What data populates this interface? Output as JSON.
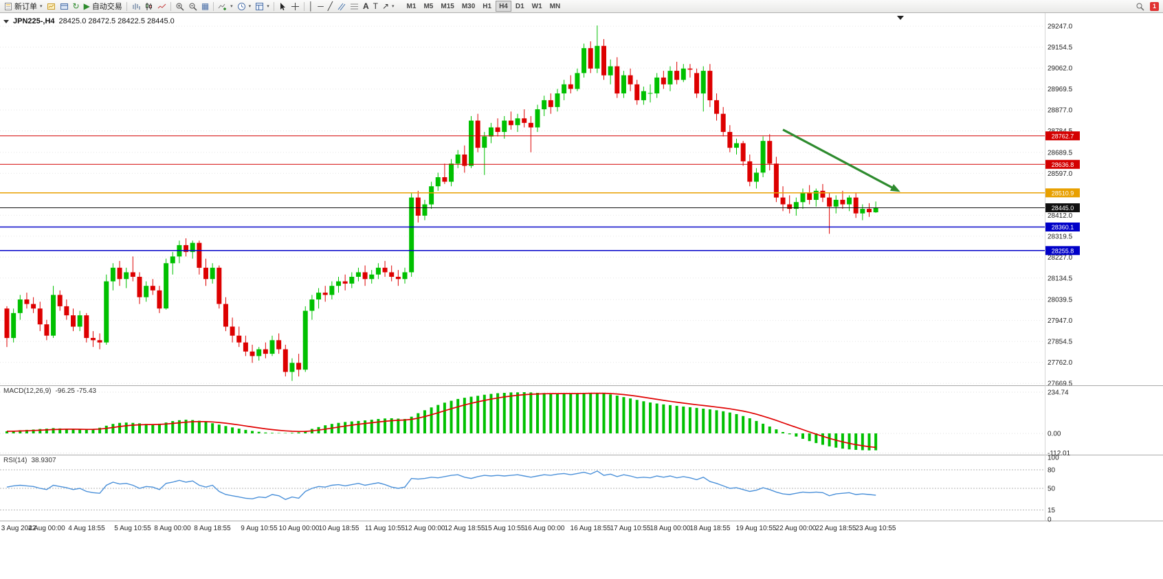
{
  "toolbar": {
    "new_order_label": "新订单",
    "autotrading_label": "自动交易",
    "text_tool_glyph": "A",
    "label_tool_glyph": "T",
    "timeframes": [
      "M1",
      "M5",
      "M15",
      "M30",
      "H1",
      "H4",
      "D1",
      "W1",
      "MN"
    ],
    "active_timeframe": "H4",
    "notification_count": "1"
  },
  "chart_header": {
    "symbol": "JPN225-,H4",
    "ohlc": "28425.0 28472.5 28422.5 28445.0"
  },
  "indicators": {
    "macd_label": "MACD(12,26,9)",
    "macd_values": "-96.25 -75.43",
    "rsi_label": "RSI(14)",
    "rsi_value": "38.9307"
  },
  "chart_data": {
    "type": "candlestick",
    "symbol": "JPN225-",
    "timeframe": "H4",
    "colors": {
      "up": "#00C000",
      "down": "#DD0000",
      "macd": "#00C000",
      "signal": "#E00000",
      "rsi": "#4a90d9"
    },
    "price_axis": {
      "min": 27640,
      "max": 29290,
      "ticks": [
        29247.0,
        29154.5,
        29062.0,
        28969.5,
        28877.0,
        28784.5,
        28689.5,
        28597.0,
        28412.0,
        28319.5,
        28227.0,
        28134.5,
        28039.5,
        27947.0,
        27854.5,
        27762.0,
        27669.5
      ]
    },
    "hlines": [
      {
        "price": 28762.7,
        "color": "#D40000",
        "w": 1
      },
      {
        "price": 28636.8,
        "color": "#D40000",
        "w": 1
      },
      {
        "price": 28510.9,
        "color": "#E8A000",
        "w": 1.5
      },
      {
        "price": 28445.0,
        "color": "#101010",
        "w": 1
      },
      {
        "price": 28360.1,
        "color": "#0000C8",
        "w": 1.5
      },
      {
        "price": 28255.8,
        "color": "#0000C8",
        "w": 1.5
      }
    ],
    "arrow": {
      "color": "#2e8b2e",
      "from": {
        "index": 117,
        "price": 28790
      },
      "to": {
        "index": 134.7,
        "price": 28515
      }
    },
    "candles": [
      [
        28000,
        28010,
        27830,
        27870
      ],
      [
        27870,
        28000,
        27850,
        27980
      ],
      [
        27980,
        28060,
        27950,
        28040
      ],
      [
        28040,
        28070,
        28000,
        28020
      ],
      [
        28020,
        28050,
        27980,
        28000
      ],
      [
        28000,
        28030,
        27900,
        27930
      ],
      [
        27930,
        27950,
        27860,
        27880
      ],
      [
        27880,
        28100,
        27870,
        28060
      ],
      [
        28060,
        28080,
        27990,
        28010
      ],
      [
        28010,
        28040,
        27950,
        27970
      ],
      [
        27970,
        28000,
        27900,
        27920
      ],
      [
        27920,
        27990,
        27900,
        27970
      ],
      [
        27970,
        27980,
        27850,
        27870
      ],
      [
        27870,
        27900,
        27830,
        27860
      ],
      [
        27860,
        27890,
        27820,
        27850
      ],
      [
        27850,
        28150,
        27840,
        28120
      ],
      [
        28120,
        28200,
        28080,
        28180
      ],
      [
        28180,
        28210,
        28100,
        28130
      ],
      [
        28130,
        28180,
        28090,
        28160
      ],
      [
        28160,
        28230,
        28120,
        28140
      ],
      [
        28140,
        28160,
        28020,
        28050
      ],
      [
        28050,
        28120,
        28030,
        28100
      ],
      [
        28100,
        28130,
        28060,
        28080
      ],
      [
        28080,
        28100,
        27980,
        28000
      ],
      [
        28000,
        28220,
        27995,
        28200
      ],
      [
        28200,
        28250,
        28150,
        28230
      ],
      [
        28230,
        28300,
        28200,
        28280
      ],
      [
        28280,
        28310,
        28230,
        28250
      ],
      [
        28250,
        28300,
        28220,
        28290
      ],
      [
        28290,
        28300,
        28150,
        28180
      ],
      [
        28180,
        28220,
        28100,
        28130
      ],
      [
        28130,
        28200,
        28110,
        28180
      ],
      [
        28180,
        28190,
        28000,
        28020
      ],
      [
        28020,
        28050,
        27900,
        27920
      ],
      [
        27920,
        27960,
        27850,
        27880
      ],
      [
        27880,
        27920,
        27830,
        27850
      ],
      [
        27850,
        27880,
        27790,
        27810
      ],
      [
        27810,
        27840,
        27760,
        27790
      ],
      [
        27790,
        27830,
        27770,
        27820
      ],
      [
        27820,
        27850,
        27780,
        27800
      ],
      [
        27800,
        27880,
        27790,
        27860
      ],
      [
        27860,
        27890,
        27800,
        27820
      ],
      [
        27820,
        27840,
        27700,
        27720
      ],
      [
        27720,
        27780,
        27680,
        27760
      ],
      [
        27760,
        27800,
        27700,
        27730
      ],
      [
        27730,
        28010,
        27720,
        27990
      ],
      [
        27990,
        28060,
        27950,
        28040
      ],
      [
        28040,
        28090,
        28000,
        28070
      ],
      [
        28070,
        28100,
        28030,
        28060
      ],
      [
        28060,
        28120,
        28040,
        28100
      ],
      [
        28100,
        28140,
        28070,
        28120
      ],
      [
        28120,
        28150,
        28080,
        28110
      ],
      [
        28110,
        28160,
        28090,
        28140
      ],
      [
        28140,
        28180,
        28120,
        28160
      ],
      [
        28160,
        28190,
        28100,
        28130
      ],
      [
        28130,
        28170,
        28110,
        28150
      ],
      [
        28150,
        28200,
        28130,
        28180
      ],
      [
        28180,
        28210,
        28140,
        28160
      ],
      [
        28160,
        28190,
        28120,
        28140
      ],
      [
        28140,
        28170,
        28100,
        28130
      ],
      [
        28130,
        28180,
        28110,
        28160
      ],
      [
        28160,
        28510,
        28140,
        28490
      ],
      [
        28490,
        28520,
        28380,
        28410
      ],
      [
        28410,
        28480,
        28390,
        28460
      ],
      [
        28460,
        28560,
        28440,
        28540
      ],
      [
        28540,
        28600,
        28520,
        28580
      ],
      [
        28580,
        28640,
        28550,
        28560
      ],
      [
        28560,
        28660,
        28540,
        28640
      ],
      [
        28640,
        28700,
        28620,
        28680
      ],
      [
        28680,
        28720,
        28600,
        28630
      ],
      [
        28630,
        28850,
        28620,
        28830
      ],
      [
        28830,
        28860,
        28690,
        28710
      ],
      [
        28710,
        28780,
        28590,
        28760
      ],
      [
        28760,
        28820,
        28730,
        28800
      ],
      [
        28800,
        28840,
        28760,
        28780
      ],
      [
        28780,
        28850,
        28750,
        28830
      ],
      [
        28830,
        28870,
        28790,
        28810
      ],
      [
        28810,
        28860,
        28780,
        28840
      ],
      [
        28840,
        28880,
        28800,
        28820
      ],
      [
        28820,
        28850,
        28690,
        28800
      ],
      [
        28800,
        28900,
        28780,
        28880
      ],
      [
        28880,
        28940,
        28850,
        28920
      ],
      [
        28920,
        28950,
        28860,
        28890
      ],
      [
        28890,
        28970,
        28870,
        28950
      ],
      [
        28950,
        29010,
        28920,
        28990
      ],
      [
        28990,
        29030,
        28950,
        28970
      ],
      [
        28970,
        29060,
        28960,
        29040
      ],
      [
        29040,
        29170,
        29020,
        29150
      ],
      [
        29150,
        29180,
        29040,
        29060
      ],
      [
        29060,
        29250,
        29040,
        29160
      ],
      [
        29160,
        29190,
        29010,
        29030
      ],
      [
        29030,
        29100,
        28990,
        29070
      ],
      [
        29070,
        29110,
        28930,
        28950
      ],
      [
        28950,
        29050,
        28930,
        29030
      ],
      [
        29030,
        29060,
        28960,
        28990
      ],
      [
        28990,
        29010,
        28900,
        28920
      ],
      [
        28920,
        28980,
        28900,
        28960
      ],
      [
        28950,
        28990,
        28910,
        28952
      ],
      [
        28950,
        29040,
        28930,
        29020
      ],
      [
        29020,
        29050,
        28970,
        28990
      ],
      [
        28990,
        29070,
        28960,
        29050
      ],
      [
        29050,
        29090,
        28990,
        29010
      ],
      [
        29010,
        29080,
        29000,
        29060
      ],
      [
        29060,
        29080,
        29020,
        29055
      ],
      [
        29040,
        29060,
        28930,
        28950
      ],
      [
        28950,
        29070,
        28870,
        29050
      ],
      [
        29050,
        29080,
        28890,
        28920
      ],
      [
        28920,
        28950,
        28830,
        28860
      ],
      [
        28860,
        28890,
        28760,
        28780
      ],
      [
        28780,
        28810,
        28690,
        28710
      ],
      [
        28710,
        28750,
        28680,
        28730
      ],
      [
        28730,
        28740,
        28630,
        28650
      ],
      [
        28650,
        28680,
        28540,
        28560
      ],
      [
        28560,
        28620,
        28530,
        28600
      ],
      [
        28600,
        28760,
        28580,
        28740
      ],
      [
        28740,
        28770,
        28610,
        28640
      ],
      [
        28640,
        28670,
        28470,
        28490
      ],
      [
        28490,
        28540,
        28430,
        28460
      ],
      [
        28460,
        28500,
        28420,
        28440
      ],
      [
        28440,
        28490,
        28410,
        28470
      ],
      [
        28470,
        28530,
        28440,
        28510
      ],
      [
        28510,
        28545,
        28460,
        28480
      ],
      [
        28480,
        28530,
        28450,
        28520
      ],
      [
        28520,
        28550,
        28470,
        28490
      ],
      [
        28490,
        28510,
        28330,
        28450
      ],
      [
        28450,
        28500,
        28420,
        28480
      ],
      [
        28480,
        28520,
        28440,
        28460
      ],
      [
        28460,
        28500,
        28430,
        28490
      ],
      [
        28490,
        28510,
        28400,
        28420
      ],
      [
        28420,
        28460,
        28390,
        28440
      ],
      [
        28440,
        28465,
        28405,
        28425
      ],
      [
        28425,
        28472.5,
        28422.5,
        28445
      ]
    ],
    "time_labels": [
      {
        "index": 0,
        "text": "3 Aug 2022"
      },
      {
        "index": 6,
        "text": "4 Aug 00:00"
      },
      {
        "index": 12,
        "text": "4 Aug 18:55"
      },
      {
        "index": 19,
        "text": "5 Aug 10:55"
      },
      {
        "index": 25,
        "text": "8 Aug 00:00"
      },
      {
        "index": 31,
        "text": "8 Aug 18:55"
      },
      {
        "index": 38,
        "text": "9 Aug 10:55"
      },
      {
        "index": 44,
        "text": "10 Aug 00:00"
      },
      {
        "index": 50,
        "text": "10 Aug 18:55"
      },
      {
        "index": 57,
        "text": "11 Aug 10:55"
      },
      {
        "index": 63,
        "text": "12 Aug 00:00"
      },
      {
        "index": 69,
        "text": "12 Aug 18:55"
      },
      {
        "index": 75,
        "text": "15 Aug 10:55"
      },
      {
        "index": 81,
        "text": "16 Aug 00:00"
      },
      {
        "index": 88,
        "text": "16 Aug 18:55"
      },
      {
        "index": 94,
        "text": "17 Aug 10:55"
      },
      {
        "index": 100,
        "text": "18 Aug 00:00"
      },
      {
        "index": 106,
        "text": "18 Aug 18:55"
      },
      {
        "index": 113,
        "text": "19 Aug 10:55"
      },
      {
        "index": 119,
        "text": "22 Aug 00:00"
      },
      {
        "index": 125,
        "text": "22 Aug 18:55"
      },
      {
        "index": 131,
        "text": "23 Aug 10:55"
      }
    ],
    "macd": {
      "label": "MACD(12,26,9)",
      "main_value": -96.25,
      "signal_value": -75.43,
      "axis": [
        234.74,
        0,
        -112.01
      ],
      "values": [
        12,
        15,
        18,
        20,
        22,
        25,
        27,
        30,
        28,
        26,
        24,
        22,
        20,
        24,
        32,
        44,
        54,
        60,
        62,
        60,
        57,
        54,
        52,
        55,
        62,
        70,
        75,
        78,
        76,
        72,
        65,
        58,
        50,
        42,
        34,
        27,
        20,
        14,
        9,
        5,
        3,
        2,
        2,
        3,
        6,
        14,
        26,
        36,
        46,
        54,
        60,
        65,
        68,
        71,
        74,
        78,
        82,
        85,
        86,
        84,
        82,
        95,
        115,
        132,
        148,
        162,
        175,
        186,
        196,
        203,
        209,
        214,
        220,
        225,
        229,
        231,
        233,
        234,
        234.7,
        233,
        231,
        230,
        229,
        228,
        227,
        227,
        228,
        230,
        231,
        230,
        227,
        222,
        215,
        207,
        199,
        191,
        183,
        176,
        170,
        165,
        161,
        157,
        153,
        149,
        145,
        141,
        137,
        132,
        126,
        119,
        110,
        99,
        86,
        71,
        55,
        39,
        23,
        8,
        -5,
        -18,
        -31,
        -44,
        -55,
        -65,
        -74,
        -81,
        -87,
        -91,
        -94,
        -96,
        -96.5,
        -96.25
      ]
    },
    "rsi": {
      "label": "RSI(14)",
      "value": 38.9307,
      "axis": [
        100,
        80,
        50,
        15,
        0
      ],
      "levels": [
        80,
        50,
        15
      ],
      "values": [
        52,
        54,
        55,
        54,
        53,
        50,
        48,
        55,
        53,
        51,
        48,
        50,
        45,
        43,
        42,
        55,
        60,
        57,
        58,
        55,
        50,
        53,
        52,
        48,
        58,
        60,
        63,
        60,
        62,
        55,
        52,
        55,
        45,
        40,
        38,
        36,
        34,
        33,
        36,
        35,
        40,
        38,
        32,
        36,
        34,
        45,
        50,
        53,
        52,
        55,
        56,
        54,
        56,
        58,
        55,
        57,
        59,
        56,
        52,
        50,
        52,
        66,
        65,
        66,
        68,
        67,
        69,
        71,
        72,
        68,
        66,
        69,
        71,
        70,
        71,
        70,
        71,
        72,
        70,
        68,
        70,
        72,
        71,
        73,
        74,
        72,
        74,
        76,
        73,
        78,
        71,
        73,
        69,
        72,
        70,
        67,
        68,
        67,
        70,
        68,
        70,
        67,
        69,
        67,
        64,
        68,
        61,
        58,
        54,
        50,
        51,
        48,
        45,
        47,
        51,
        48,
        44,
        41,
        40,
        42,
        44,
        43,
        44,
        43,
        38,
        41,
        42,
        43,
        40,
        41,
        40,
        38.93
      ]
    }
  }
}
